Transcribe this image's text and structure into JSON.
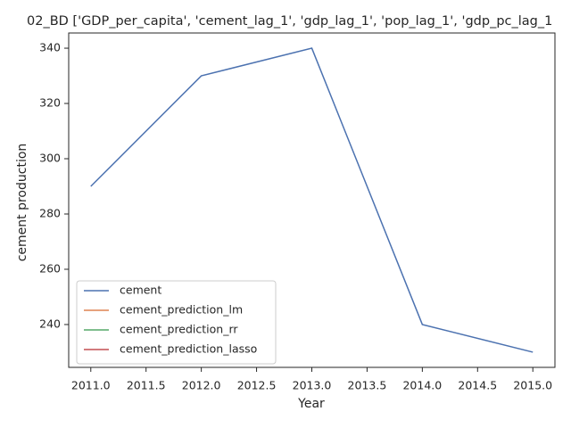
{
  "chart_data": {
    "type": "line",
    "title": "02_BD ['GDP_per_capita', 'cement_lag_1', 'gdp_lag_1', 'pop_lag_1', 'gdp_pc_lag_1",
    "x_label": "Year",
    "y_label": "cement production",
    "x": [
      2011,
      2012,
      2013,
      2014,
      2015
    ],
    "series": [
      {
        "name": "cement",
        "color": "#4c72b0",
        "values": [
          290,
          330,
          340,
          240,
          230
        ]
      },
      {
        "name": "cement_prediction_lm",
        "color": "#dd8452",
        "values": [
          null,
          null,
          null,
          null,
          null
        ]
      },
      {
        "name": "cement_prediction_rr",
        "color": "#55a868",
        "values": [
          null,
          null,
          null,
          null,
          null
        ]
      },
      {
        "name": "cement_prediction_lasso",
        "color": "#c44e52",
        "values": [
          null,
          null,
          null,
          null,
          null
        ]
      }
    ],
    "xlim": [
      2010.8,
      2015.2
    ],
    "ylim": [
      224.5,
      345.5
    ],
    "xticks": [
      {
        "value": 2011,
        "label": "2011.0"
      },
      {
        "value": 2011.5,
        "label": "2011.5"
      },
      {
        "value": 2012,
        "label": "2012.0"
      },
      {
        "value": 2012.5,
        "label": "2012.5"
      },
      {
        "value": 2013,
        "label": "2013.0"
      },
      {
        "value": 2013.5,
        "label": "2013.5"
      },
      {
        "value": 2014,
        "label": "2014.0"
      },
      {
        "value": 2014.5,
        "label": "2014.5"
      },
      {
        "value": 2015,
        "label": "2015.0"
      }
    ],
    "yticks": [
      240,
      260,
      280,
      300,
      320,
      340
    ],
    "grid": false,
    "legend": "lower left"
  }
}
